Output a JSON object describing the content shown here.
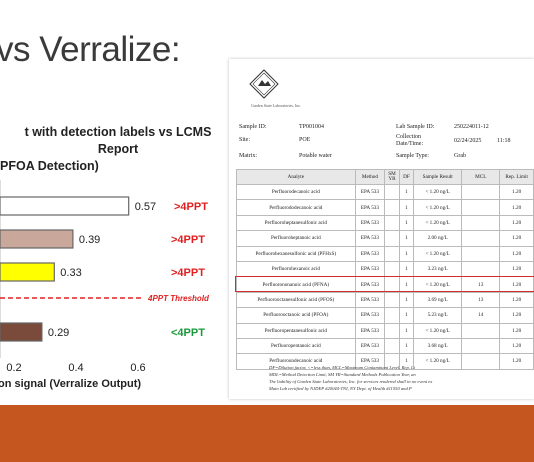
{
  "slide": {
    "title": "vs Verralize:"
  },
  "chart_data": {
    "type": "bar",
    "orientation": "horizontal",
    "title_lines": [
      "t with detection labels vs LCMS",
      "Report",
      "PFOA Detection)"
    ],
    "categories": [
      "",
      "",
      "",
      ""
    ],
    "values": [
      0.57,
      0.39,
      0.33,
      0.29
    ],
    "value_labels": [
      "0.57",
      "0.39",
      "0.33",
      "0.29"
    ],
    "bar_colors": [
      "#ffffff",
      "#c9a79a",
      "#ffff00",
      "#7a4a3a"
    ],
    "status_labels": [
      ">4PPT",
      ">4PPT",
      ">4PPT",
      "<4PPT"
    ],
    "status_colors": [
      "#e02020",
      "#e02020",
      "#e02020",
      "#1a9a3a"
    ],
    "threshold": {
      "label": "4PPT Threshold",
      "color": "#e02020"
    },
    "xlim": [
      0,
      0.6
    ],
    "xticks": [
      "0.2",
      "0.4",
      "0.6"
    ],
    "xlabel": "on signal (Verralize Output)"
  },
  "report": {
    "lab_name": "Garden State Laboratories, Inc.",
    "sample_id_label": "Sample ID:",
    "sample_id": "TP001004",
    "site_label": "Site:",
    "site": "POE",
    "matrix_label": "Matrix:",
    "matrix": "Potable water",
    "lab_sample_id_label": "Lab Sample ID:",
    "lab_sample_id": "250224011-12",
    "collection_label_1": "Collection",
    "collection_label_2": "Date/Time:",
    "collection_date": "02/24/2025",
    "collection_time": "11:18",
    "sample_type_label": "Sample Type:",
    "sample_type": "Grab",
    "columns": [
      "Analyte",
      "Method",
      "SM YR",
      "DF",
      "Sample Result",
      "MCL",
      "Rep. Limit"
    ],
    "rows": [
      {
        "analyte": "Perfluorodecanoic acid",
        "method": "EPA 533",
        "df": "1",
        "result": "< 1.20 ng/L",
        "mcl": "",
        "limit": "1.20"
      },
      {
        "analyte": "Perfluorododecanoic acid",
        "method": "EPA 533",
        "df": "1",
        "result": "< 1.20 ng/L",
        "mcl": "",
        "limit": "1.20"
      },
      {
        "analyte": "Perfluoroheptanesulfonic acid",
        "method": "EPA 533",
        "df": "1",
        "result": "< 1.20 ng/L",
        "mcl": "",
        "limit": "1.20"
      },
      {
        "analyte": "Perfluoroheptanoic acid",
        "method": "EPA 533",
        "df": "1",
        "result": "2.00 ng/L",
        "mcl": "",
        "limit": "1.20"
      },
      {
        "analyte": "Perfluorohexanesulfonic acid (PFHxS)",
        "method": "EPA 533",
        "df": "1",
        "result": "< 1.20 ng/L",
        "mcl": "",
        "limit": "1.20"
      },
      {
        "analyte": "Perfluorohexanoic acid",
        "method": "EPA 533",
        "df": "1",
        "result": "3.23 ng/L",
        "mcl": "",
        "limit": "1.20"
      },
      {
        "analyte": "Perfluorononanoic acid (PFNA)",
        "method": "EPA 533",
        "df": "1",
        "result": "< 1.20 ng/L",
        "mcl": "13",
        "limit": "1.20"
      },
      {
        "analyte": "Perfluorooctanesulfonic acid (PFOS)",
        "method": "EPA 533",
        "df": "1",
        "result": "3.69 ng/L",
        "mcl": "13",
        "limit": "1.20"
      },
      {
        "analyte": "Perfluorooctanoic acid (PFOA)",
        "method": "EPA 533",
        "df": "1",
        "result": "5.23 ng/L",
        "mcl": "14",
        "limit": "1.20"
      },
      {
        "analyte": "Perfluoropentanesulfonic acid",
        "method": "EPA 533",
        "df": "1",
        "result": "< 1.20 ng/L",
        "mcl": "",
        "limit": "1.20"
      },
      {
        "analyte": "Perfluoropentanoic acid",
        "method": "EPA 533",
        "df": "1",
        "result": "3.68 ng/L",
        "mcl": "",
        "limit": "1.20"
      },
      {
        "analyte": "Perfluoroundecanoic acid",
        "method": "EPA 533",
        "df": "1",
        "result": "< 1.20 ng/L",
        "mcl": "",
        "limit": "1.20"
      }
    ],
    "footnotes": [
      "DF=Dilution factor, <=less than, MCL=Maximum Contaminant Level, Rep. Li",
      "MDL=Method Detection Limit, SM YR=Standard Methods Publication Year, an",
      "The liability of Garden State Laboratories, Inc. for services rendered shall in no event ex",
      "Main Lab certified by NJDEP #20044-TNI, NY Dept. of Health #11550 and P"
    ]
  }
}
